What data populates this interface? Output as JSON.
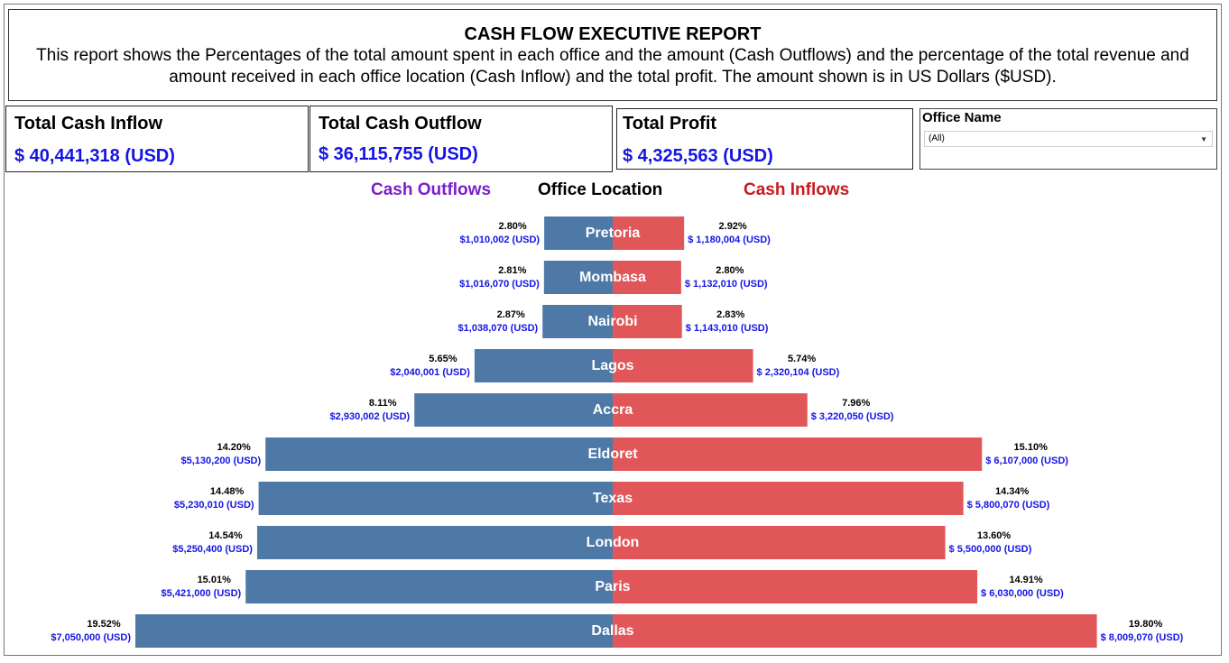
{
  "report": {
    "title": "CASH FLOW EXECUTIVE REPORT",
    "description": "This report shows the Percentages of the total amount spent in each office and the amount (Cash Outflows) and the percentage of the total revenue and amount received in each office location (Cash Inflow) and the total profit. The amount shown is in US Dollars ($USD)."
  },
  "kpis": {
    "inflow": {
      "label": "Total Cash Inflow",
      "value": "$ 40,441,318 (USD)"
    },
    "outflow": {
      "label": "Total Cash Outflow",
      "value": "$ 36,115,755 (USD)"
    },
    "profit": {
      "label": "Total Profit",
      "value": "$ 4,325,563 (USD)"
    }
  },
  "filter": {
    "label": "Office Name",
    "selected": "(All)"
  },
  "colors": {
    "outflow_bar": "#4e79a7",
    "inflow_bar": "#e15759",
    "outflow_header": "#7b1fc8",
    "inflow_header": "#c8191e",
    "amount_text": "#1414e6"
  },
  "chart_data": {
    "type": "bar",
    "orientation": "horizontal-diverging",
    "headers": {
      "outflow": "Cash Outflows",
      "category": "Office Location",
      "inflow": "Cash Inflows"
    },
    "categories": [
      "Pretoria",
      "Mombasa",
      "Nairobi",
      "Lagos",
      "Accra",
      "Eldoret",
      "Texas",
      "London",
      "Paris",
      "Dallas"
    ],
    "series": [
      {
        "name": "Cash Outflows",
        "values": [
          2.8,
          2.81,
          2.87,
          5.65,
          8.11,
          14.2,
          14.48,
          14.54,
          15.01,
          19.52
        ],
        "pct_labels": [
          "2.80%",
          "2.81%",
          "2.87%",
          "5.65%",
          "8.11%",
          "14.20%",
          "14.48%",
          "14.54%",
          "15.01%",
          "19.52%"
        ],
        "amount_labels": [
          "$1,010,002 (USD)",
          "$1,016,070 (USD)",
          "$1,038,070 (USD)",
          "$2,040,001 (USD)",
          "$2,930,002 (USD)",
          "$5,130,200 (USD)",
          "$5,230,010 (USD)",
          "$5,250,400 (USD)",
          "$5,421,000 (USD)",
          "$7,050,000 (USD)"
        ]
      },
      {
        "name": "Cash Inflows",
        "values": [
          2.92,
          2.8,
          2.83,
          5.74,
          7.96,
          15.1,
          14.34,
          13.6,
          14.91,
          19.8
        ],
        "pct_labels": [
          "2.92%",
          "2.80%",
          "2.83%",
          "5.74%",
          "7.96%",
          "15.10%",
          "14.34%",
          "13.60%",
          "14.91%",
          "19.80%"
        ],
        "amount_labels": [
          "$ 1,180,004 (USD)",
          "$ 1,132,010 (USD)",
          "$ 1,143,010 (USD)",
          "$ 2,320,104 (USD)",
          "$ 3,220,050 (USD)",
          "$ 6,107,000 (USD)",
          "$ 5,800,070 (USD)",
          "$ 5,500,000 (USD)",
          "$ 6,030,000 (USD)",
          "$ 8,009,070 (USD)"
        ]
      }
    ]
  }
}
